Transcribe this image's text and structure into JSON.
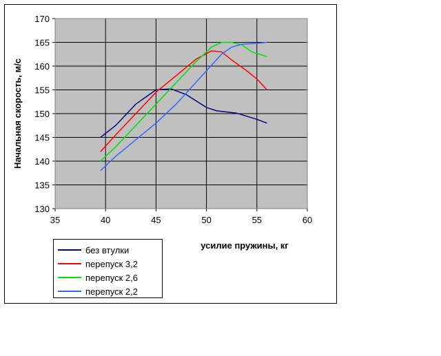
{
  "chart_data": {
    "type": "line",
    "ylabel": "Начальная скорость, м/с",
    "xlabel": "усилие пружины, кг",
    "xlim": [
      35,
      60
    ],
    "xticks": [
      35,
      40,
      45,
      50,
      55,
      60
    ],
    "ylim": [
      130,
      170
    ],
    "yticks": [
      130,
      135,
      140,
      145,
      150,
      155,
      160,
      165,
      170
    ],
    "grid": true,
    "legend": "bottom-left",
    "series": [
      {
        "name": "без втулки",
        "color": "#000080",
        "x": [
          39.5,
          41,
          43,
          45,
          46.5,
          48,
          50,
          51,
          53,
          55,
          56
        ],
        "values": [
          145,
          147.5,
          152,
          155,
          155.2,
          154,
          151.3,
          150.6,
          150.1,
          148.8,
          148
        ]
      },
      {
        "name": "перепуск 3,2",
        "color": "#ff0000",
        "x": [
          39.5,
          41,
          43,
          45,
          47,
          49,
          50.5,
          51.5,
          52.5,
          54,
          55,
          56
        ],
        "values": [
          142,
          145.5,
          150,
          154.5,
          158,
          161.5,
          163.2,
          163,
          161.3,
          159,
          157.3,
          155
        ]
      },
      {
        "name": "перепуск 2,6",
        "color": "#00e000",
        "x": [
          39.5,
          41,
          43,
          45,
          47,
          49,
          50.5,
          51.5,
          52.5,
          53.5,
          54.5,
          56
        ],
        "values": [
          140,
          143,
          147.5,
          152,
          156.5,
          161,
          164,
          165,
          165,
          164.5,
          163,
          162
        ]
      },
      {
        "name": "перепуск 2,2",
        "color": "#3366ff",
        "x": [
          39.5,
          41,
          43,
          45,
          47,
          48.5,
          50,
          51.5,
          52.5,
          53.5,
          55,
          56
        ],
        "values": [
          138,
          141,
          144.5,
          148,
          152,
          155.5,
          159,
          162.5,
          164,
          164.6,
          164.8,
          165
        ]
      }
    ]
  }
}
